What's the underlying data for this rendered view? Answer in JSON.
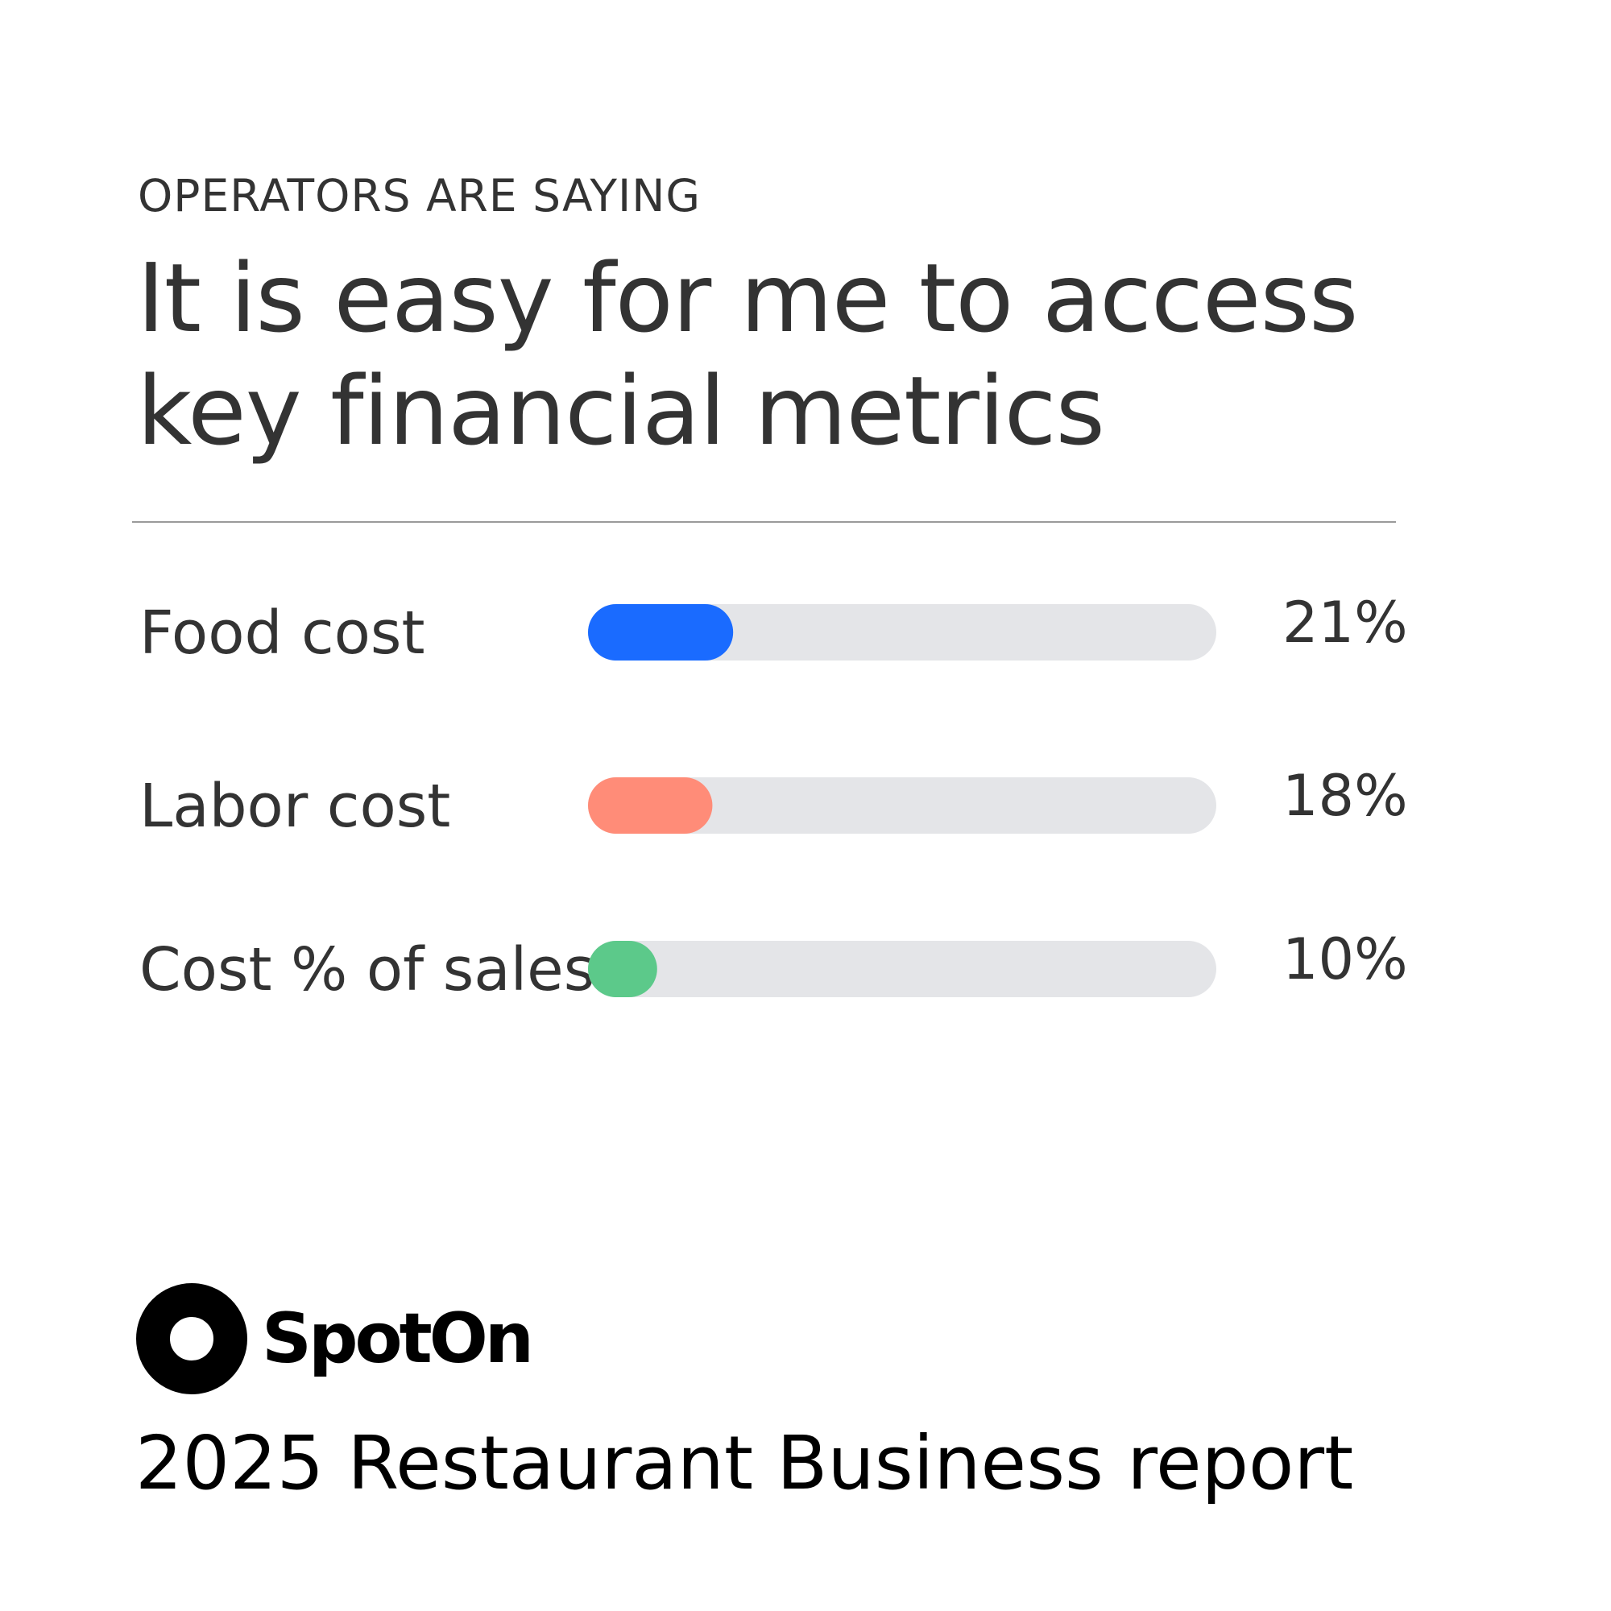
{
  "header": {
    "eyebrow": "OPERATORS ARE SAYING",
    "title_line1": "It is easy for me to access",
    "title_line2": "key financial metrics"
  },
  "chart_data": {
    "type": "bar",
    "orientation": "horizontal",
    "categories": [
      "Food cost",
      "Labor cost",
      "Cost % of sales"
    ],
    "values": [
      21,
      18,
      10
    ],
    "value_labels": [
      "21%",
      "18%",
      "10%"
    ],
    "colors": [
      "#1a6bff",
      "#ff8c78",
      "#5cc98a"
    ],
    "track_color": "#e4e5e8",
    "xlim": [
      0,
      100
    ],
    "grid": false
  },
  "brand": {
    "logo_name": "SpotOn"
  },
  "footer": {
    "report_title": "2025 Restaurant Business report"
  }
}
